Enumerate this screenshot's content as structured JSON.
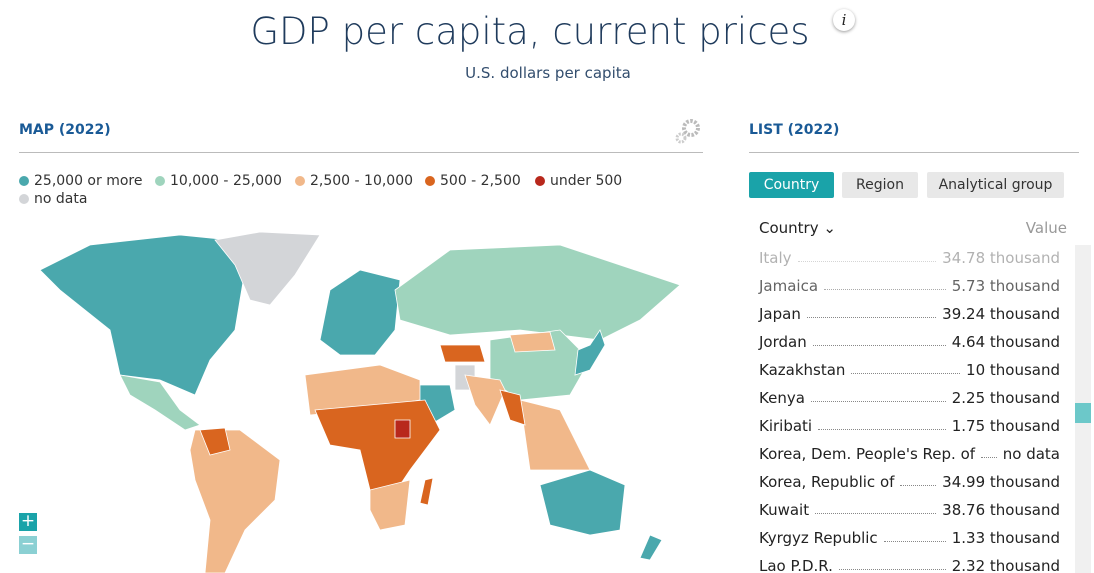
{
  "header": {
    "title": "GDP per capita, current prices",
    "info": "i",
    "subtitle": "U.S. dollars per capita"
  },
  "map": {
    "title": "MAP (2022)",
    "legend": [
      {
        "label": "25,000 or more",
        "color": "#4aa8ad"
      },
      {
        "label": "10,000 - 25,000",
        "color": "#9fd4bd"
      },
      {
        "label": "2,500 - 10,000",
        "color": "#f1b88a"
      },
      {
        "label": "500 - 2,500",
        "color": "#d9651f"
      },
      {
        "label": "under 500",
        "color": "#b8281c"
      },
      {
        "label": "no data",
        "color": "#d3d5d8"
      }
    ],
    "zoom_in": "+",
    "zoom_out": "−"
  },
  "list": {
    "title": "LIST (2022)",
    "tabs": [
      "Country",
      "Region",
      "Analytical group"
    ],
    "column_country": "Country ⌄",
    "column_value": "Value",
    "rows": [
      [
        "Italy",
        "34.78 thousand"
      ],
      [
        "Jamaica",
        "5.73 thousand"
      ],
      [
        "Japan",
        "39.24 thousand"
      ],
      [
        "Jordan",
        "4.64 thousand"
      ],
      [
        "Kazakhstan",
        "10 thousand"
      ],
      [
        "Kenya",
        "2.25 thousand"
      ],
      [
        "Kiribati",
        "1.75 thousand"
      ],
      [
        "Korea, Dem. People's Rep. of",
        "no data"
      ],
      [
        "Korea, Republic of",
        "34.99 thousand"
      ],
      [
        "Kuwait",
        "38.76 thousand"
      ],
      [
        "Kyrgyz Republic",
        "1.33 thousand"
      ],
      [
        "Lao P.D.R.",
        "2.32 thousand"
      ]
    ]
  }
}
